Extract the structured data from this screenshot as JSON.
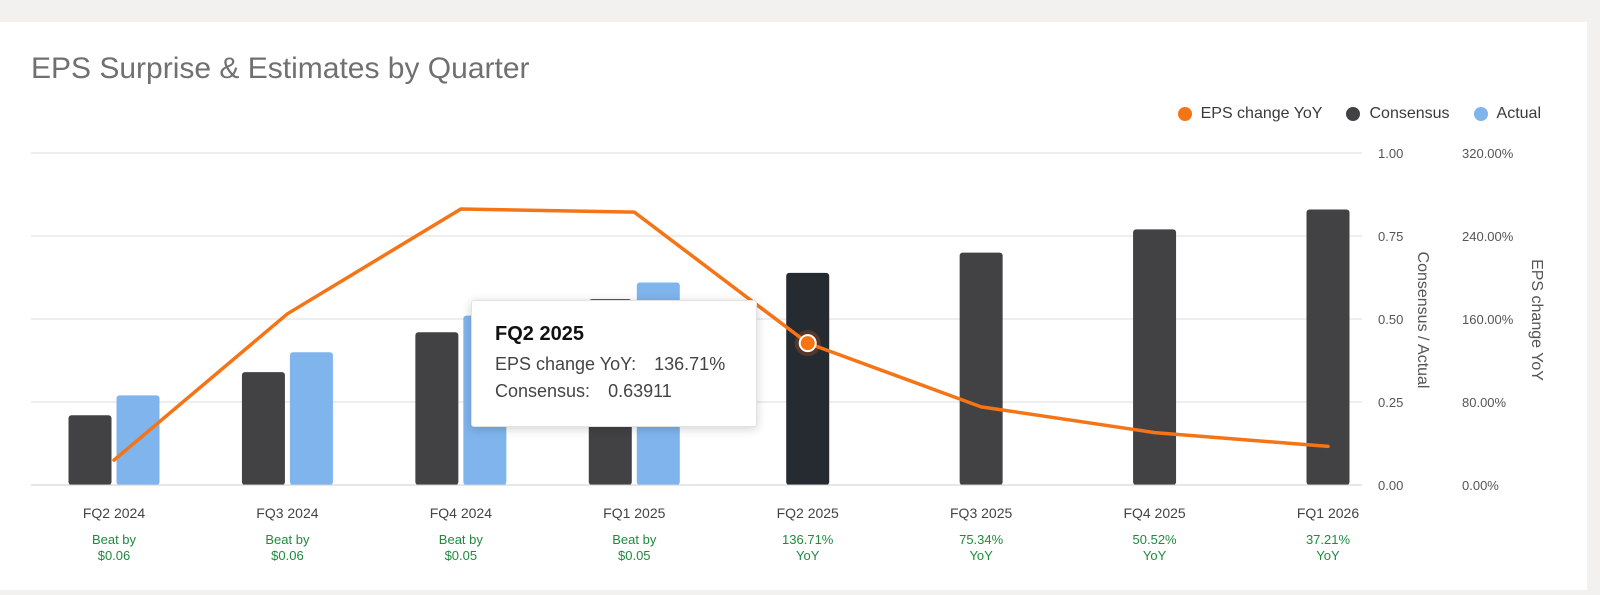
{
  "title": "EPS Surprise & Estimates by Quarter",
  "legend": [
    {
      "label": "EPS change YoY",
      "color": "#f57416"
    },
    {
      "label": "Consensus",
      "color": "#424245"
    },
    {
      "label": "Actual",
      "color": "#7fb4ec"
    }
  ],
  "colors": {
    "eps_line": "#f57416",
    "consensus": "#424245",
    "consensus_highlight": "#262a31",
    "actual": "#7fb4ec",
    "positive_text": "#1e8a3e",
    "grid": "#dcdcdc",
    "axis_text": "#555555"
  },
  "chart_data": {
    "type": "bar",
    "categories": [
      "FQ2 2024",
      "FQ3 2024",
      "FQ4 2024",
      "FQ1 2025",
      "FQ2 2025",
      "FQ3 2025",
      "FQ4 2025",
      "FQ1 2026"
    ],
    "series": [
      {
        "name": "Consensus",
        "type": "bar",
        "axis": "left",
        "values": [
          0.21,
          0.34,
          0.46,
          0.56,
          0.63911,
          0.7,
          0.77,
          0.83
        ]
      },
      {
        "name": "Actual",
        "type": "bar",
        "axis": "left",
        "values": [
          0.27,
          0.4,
          0.51,
          0.61,
          null,
          null,
          null,
          null
        ]
      },
      {
        "name": "EPS change YoY",
        "type": "line",
        "axis": "right",
        "values": [
          24,
          165,
          266,
          263,
          136.71,
          75.34,
          50.52,
          37.21
        ]
      }
    ],
    "y_left": {
      "label": "Consensus / Actual",
      "range": [
        0,
        1.0
      ],
      "ticks": [
        "0.00",
        "0.25",
        "0.50",
        "0.75",
        "1.00"
      ]
    },
    "y_right": {
      "label": "EPS change YoY",
      "range": [
        0,
        320
      ],
      "ticks": [
        "0.00%",
        "80.00%",
        "160.00%",
        "240.00%",
        "320.00%"
      ]
    },
    "notes": [
      [
        "Beat by",
        "$0.06"
      ],
      [
        "Beat by",
        "$0.06"
      ],
      [
        "Beat by",
        "$0.05"
      ],
      [
        "Beat by",
        "$0.05"
      ],
      [
        "136.71%",
        "YoY"
      ],
      [
        "75.34%",
        "YoY"
      ],
      [
        "50.52%",
        "YoY"
      ],
      [
        "37.21%",
        "YoY"
      ]
    ],
    "highlight_index": 4,
    "grid": true,
    "legend_position": "top-right"
  },
  "tooltip": {
    "title": "FQ2 2025",
    "rows": [
      {
        "label": "EPS change YoY:",
        "value": "136.71%"
      },
      {
        "label": "Consensus:",
        "value": "0.63911"
      }
    ]
  }
}
